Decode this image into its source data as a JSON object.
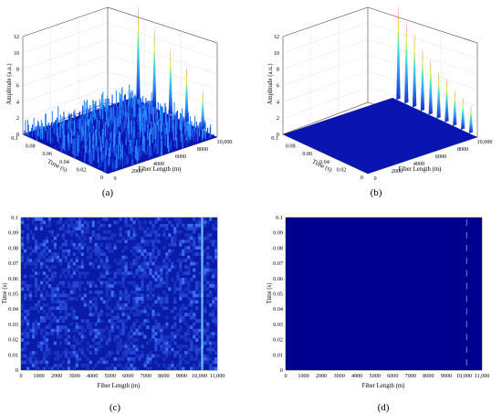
{
  "panels": [
    {
      "id": "a",
      "label": "(a)",
      "type": "surface3d",
      "zlabel": "Amplitude (a.u.)",
      "xlabel": "Fiber Length (m)",
      "ylabel": "Time (s)",
      "zticks": [
        "0",
        "2",
        "4",
        "6",
        "8",
        "10",
        "12"
      ],
      "xticks": [
        "0",
        "2000",
        "4000",
        "6000",
        "8000",
        "10,000"
      ],
      "yticks": [
        "0",
        "0.02",
        "0.04",
        "0.06",
        "0.08",
        "0.1"
      ]
    },
    {
      "id": "b",
      "label": "(b)",
      "type": "surface3d",
      "zlabel": "Amplitude (a.u.)",
      "xlabel": "Fiber Length (m)",
      "ylabel": "Time (s)",
      "zticks": [
        "0",
        "2",
        "4",
        "6",
        "8",
        "10",
        "12"
      ],
      "xticks": [
        "0",
        "2000",
        "4000",
        "6000",
        "8000",
        "10,000"
      ],
      "yticks": [
        "0",
        "0.02",
        "0.04",
        "0.06",
        "0.08",
        "0.1"
      ]
    },
    {
      "id": "c",
      "label": "(c)",
      "type": "heatmap",
      "xlabel": "Fiber Length (m)",
      "ylabel": "Time (s)",
      "xticks": [
        "0",
        "1000",
        "2000",
        "3000",
        "4000",
        "5000",
        "6000",
        "7000",
        "8000",
        "9000",
        "10,000",
        "11,000"
      ],
      "yticks": [
        "0",
        "0.01",
        "0.02",
        "0.03",
        "0.04",
        "0.05",
        "0.06",
        "0.07",
        "0.08",
        "0.09",
        "0.1"
      ]
    },
    {
      "id": "d",
      "label": "(d)",
      "type": "heatmap",
      "xlabel": "Fiber Length (m)",
      "ylabel": "Time (s)",
      "xticks": [
        "0",
        "1000",
        "2000",
        "3000",
        "4000",
        "5000",
        "6000",
        "7000",
        "8000",
        "9000",
        "10,000",
        "11,000"
      ],
      "yticks": [
        "0",
        "0.01",
        "0.02",
        "0.03",
        "0.04",
        "0.05",
        "0.06",
        "0.07",
        "0.08",
        "0.09",
        "0.1"
      ]
    }
  ],
  "chart_data": [
    {
      "type": "surface3d",
      "panel": "a",
      "xlim": [
        0,
        10000
      ],
      "ylim": [
        0,
        0.1
      ],
      "zlim": [
        0,
        12
      ],
      "noise_floor_amplitude": 1,
      "peaks": [
        {
          "x": 10150,
          "z": 12
        },
        {
          "x": 10150,
          "z": 10
        },
        {
          "x": 10150,
          "z": 8.5
        },
        {
          "x": 10150,
          "z": 7
        },
        {
          "x": 10150,
          "z": 5
        }
      ]
    },
    {
      "type": "surface3d",
      "panel": "b",
      "xlim": [
        0,
        10000
      ],
      "ylim": [
        0,
        0.1
      ],
      "zlim": [
        0,
        12
      ],
      "noise_floor_amplitude": 0,
      "peaks": [
        {
          "x": 10150,
          "z": 12
        },
        {
          "x": 10150,
          "z": 10.5
        },
        {
          "x": 10150,
          "z": 9.5
        },
        {
          "x": 10150,
          "z": 8
        },
        {
          "x": 10150,
          "z": 7
        },
        {
          "x": 10150,
          "z": 6
        },
        {
          "x": 10150,
          "z": 5.5
        },
        {
          "x": 10150,
          "z": 4.5
        },
        {
          "x": 10150,
          "z": 4
        },
        {
          "x": 10150,
          "z": 3.5
        }
      ]
    },
    {
      "type": "heatmap",
      "panel": "c",
      "xlim": [
        0,
        11000
      ],
      "ylim": [
        0,
        0.1
      ],
      "event_location": 10150,
      "background": "noisy"
    },
    {
      "type": "heatmap",
      "panel": "d",
      "xlim": [
        0,
        11000
      ],
      "ylim": [
        0,
        0.1
      ],
      "event_location": 10150,
      "background": "clean"
    }
  ],
  "colors": {
    "deep_blue": "#00008f",
    "heat_background": "#0a1ba8",
    "event_line": "#7fd6ff",
    "peak_red": "#c81e1e",
    "peak_yellow": "#f0e81e",
    "peak_cyan": "#36d0e0"
  }
}
